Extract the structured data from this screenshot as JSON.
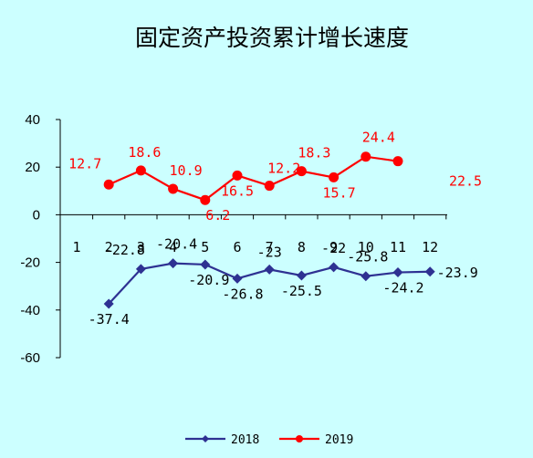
{
  "chart_data": {
    "type": "line",
    "title": "固定资产投资累计增长速度",
    "categories": [
      "1",
      "2",
      "3",
      "4",
      "5",
      "6",
      "7",
      "8",
      "9",
      "10",
      "11",
      "12"
    ],
    "ylim": [
      -60,
      40
    ],
    "yticks": [
      "40",
      "20",
      "0",
      "-20",
      "-40",
      "-60"
    ],
    "grid": false,
    "legend_position": "bottom",
    "series": [
      {
        "name": "2018",
        "color": "#2e3192",
        "marker": "diamond",
        "values": [
          null,
          -37.4,
          -22.8,
          -20.4,
          -20.9,
          -26.8,
          -23,
          -25.5,
          -22,
          -25.8,
          -24.2,
          -23.9
        ],
        "labels": [
          null,
          "-37.4",
          "-22.8",
          "-20.4",
          "-20.9",
          "-26.8",
          "-23",
          "-25.5",
          "-22",
          "-25.8",
          "-24.2",
          "-23.9"
        ]
      },
      {
        "name": "2019",
        "color": "#ff0000",
        "marker": "circle",
        "values": [
          null,
          12.7,
          18.6,
          10.9,
          6.2,
          16.5,
          12.2,
          18.3,
          15.7,
          24.4,
          22.5,
          null
        ],
        "labels": [
          null,
          "12.7",
          "18.6",
          "10.9",
          "6.2",
          "16.5",
          "12.2",
          "18.3",
          "15.7",
          "24.4",
          "22.5",
          null
        ]
      }
    ]
  }
}
